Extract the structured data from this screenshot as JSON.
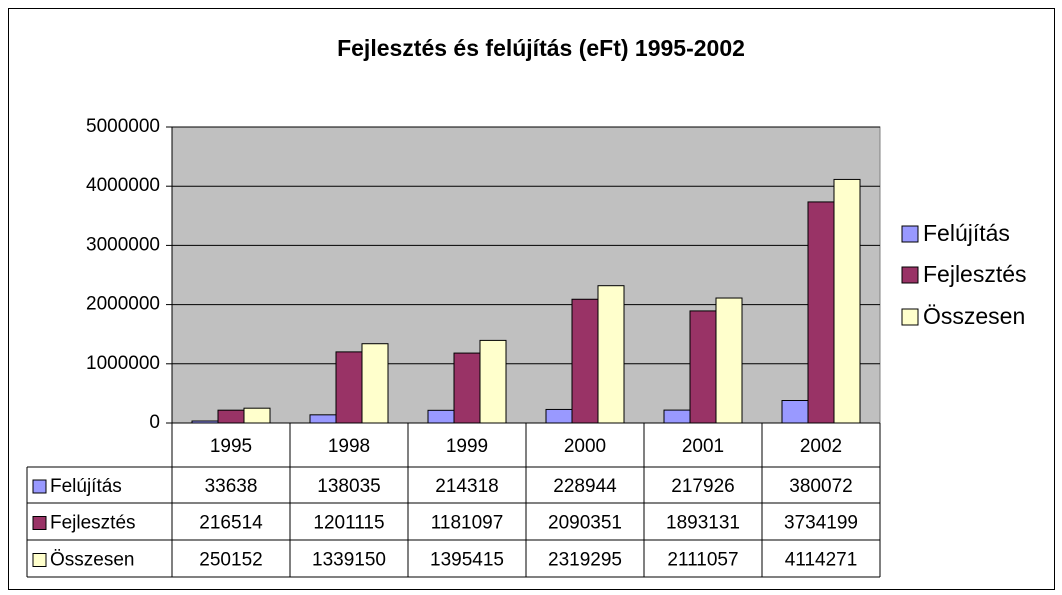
{
  "chart_data": {
    "type": "bar",
    "title": "Fejlesztés és felújítás (eFt) 1995-2002",
    "categories": [
      "1995",
      "1998",
      "1999",
      "2000",
      "2001",
      "2002"
    ],
    "series": [
      {
        "name": "Felújítás",
        "color": "#9999ff",
        "values": [
          33638,
          138035,
          214318,
          228944,
          217926,
          380072
        ]
      },
      {
        "name": "Fejlesztés",
        "color": "#993366",
        "values": [
          216514,
          1201115,
          1181097,
          2090351,
          1893131,
          3734199
        ]
      },
      {
        "name": "Összesen",
        "color": "#ffffcc",
        "values": [
          250152,
          1339150,
          1395415,
          2319295,
          2111057,
          4114271
        ]
      }
    ],
    "ylim": [
      0,
      5000000
    ],
    "yticks": [
      0,
      1000000,
      2000000,
      3000000,
      4000000,
      5000000
    ],
    "grid": true,
    "legend": "right",
    "plot_background": "#c0c0c0"
  }
}
